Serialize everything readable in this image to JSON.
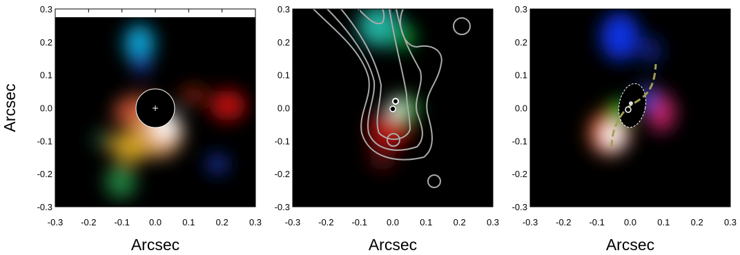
{
  "chart_data": [
    {
      "type": "image",
      "xlabel": "Arcsec",
      "ylabel": "Arcsec",
      "xlim": [
        -0.3,
        0.3
      ],
      "ylim": [
        -0.3,
        0.3
      ],
      "xticks": [
        -0.3,
        -0.2,
        -0.1,
        {
          "value": 0,
          "label": "0.0"
        },
        0.1,
        0.2,
        0.3
      ],
      "yticks": [
        -0.3,
        -0.2,
        -0.1,
        {
          "value": 0,
          "label": "0.0"
        },
        0.1,
        0.2,
        0.3
      ]
    },
    {
      "type": "image",
      "xlabel": "Arcsec",
      "xlim": [
        -0.3,
        0.3
      ],
      "ylim": [
        -0.3,
        0.3
      ],
      "xticks": [
        -0.3,
        -0.2,
        -0.1,
        {
          "value": 0,
          "label": "0.0"
        },
        0.1,
        0.2,
        0.3
      ],
      "yticks": [
        -0.3,
        -0.2,
        -0.1,
        {
          "value": 0,
          "label": "0.0"
        },
        0.1,
        0.2,
        0.3
      ]
    },
    {
      "type": "image",
      "xlabel": "Arcsec",
      "xlim": [
        -0.3,
        0.3
      ],
      "ylim": [
        -0.3,
        0.3
      ],
      "xticks": [
        -0.3,
        -0.2,
        -0.1,
        {
          "value": 0,
          "label": "0.0"
        },
        0.1,
        0.2,
        0.3
      ],
      "yticks": [
        -0.3,
        -0.2,
        -0.1,
        {
          "value": 0,
          "label": "0.0"
        },
        0.1,
        0.2,
        0.3
      ]
    }
  ]
}
